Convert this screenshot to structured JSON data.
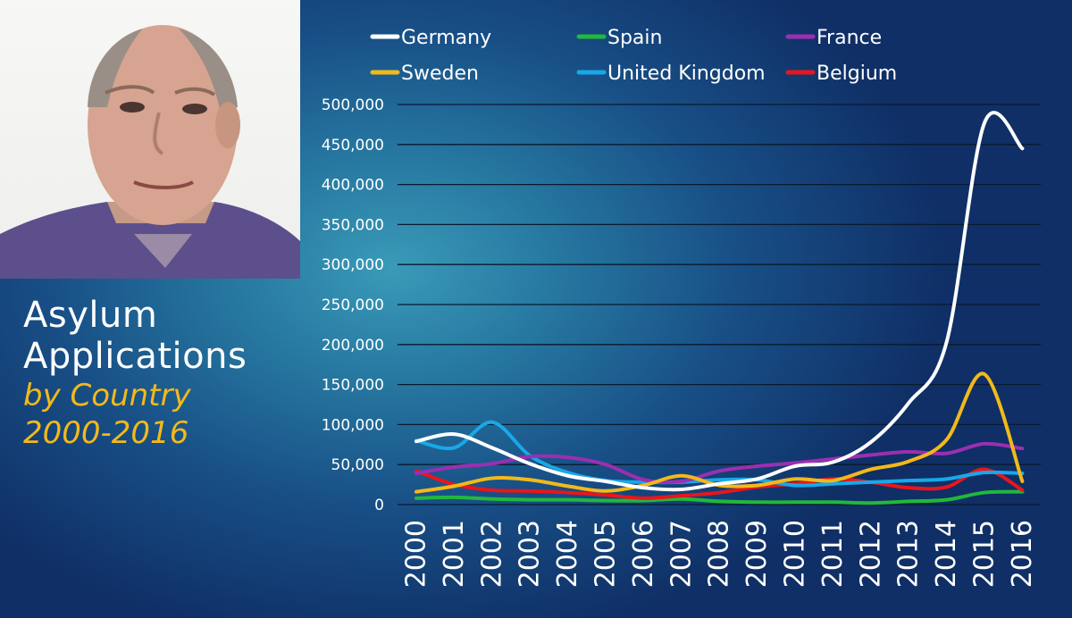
{
  "title": {
    "line1": "Asylum",
    "line2": "Applications",
    "line3": "by Country",
    "line4": "2000-2016"
  },
  "colors": {
    "title": "#ffffff",
    "subtitle": "#f2b91a",
    "Germany": "#ffffff",
    "Spain": "#22b83a",
    "France": "#9b2fb0",
    "Sweden": "#f2b91a",
    "United Kingdom": "#18a8e8",
    "Belgium": "#e8161c"
  },
  "chart_data": {
    "type": "line",
    "title": "",
    "xlabel": "",
    "ylabel": "",
    "x": [
      "2000",
      "2001",
      "2002",
      "2003",
      "2004",
      "2005",
      "2006",
      "2007",
      "2008",
      "2009",
      "2010",
      "2011",
      "2012",
      "2013",
      "2014",
      "2015",
      "2016"
    ],
    "ylim": [
      0,
      500000
    ],
    "yticks": [
      "0",
      "50,000",
      "100,000",
      "150,000",
      "200,000",
      "250,000",
      "300,000",
      "350,000",
      "400,000",
      "450,000",
      "500,000"
    ],
    "grid": true,
    "legend_position": "top",
    "series": [
      {
        "name": "Germany",
        "values": [
          79000,
          88000,
          71000,
          51000,
          36000,
          29000,
          21000,
          19000,
          26000,
          32000,
          48000,
          53000,
          78000,
          127000,
          203000,
          477000,
          445000
        ]
      },
      {
        "name": "Spain",
        "values": [
          8000,
          9000,
          7000,
          6000,
          6000,
          5000,
          5000,
          7000,
          4000,
          3000,
          3000,
          3000,
          2000,
          4000,
          6000,
          15000,
          16000
        ]
      },
      {
        "name": "France",
        "values": [
          39000,
          47000,
          51000,
          60000,
          59000,
          50000,
          31000,
          29000,
          42000,
          48000,
          52000,
          57000,
          62000,
          66000,
          64000,
          76000,
          70000
        ]
      },
      {
        "name": "Sweden",
        "values": [
          16000,
          23000,
          33000,
          31000,
          23000,
          17000,
          24000,
          36000,
          24000,
          24000,
          32000,
          30000,
          44000,
          54000,
          81000,
          163000,
          29000
        ]
      },
      {
        "name": "United Kingdom",
        "values": [
          80000,
          71000,
          103000,
          61000,
          40000,
          30000,
          28000,
          28000,
          31000,
          31000,
          24000,
          26000,
          28000,
          30000,
          32000,
          40000,
          39000
        ]
      },
      {
        "name": "Belgium",
        "values": [
          42000,
          25000,
          18000,
          17000,
          15000,
          12000,
          8000,
          11000,
          15000,
          22000,
          26000,
          32000,
          28000,
          21000,
          22000,
          44000,
          18000
        ]
      }
    ]
  }
}
